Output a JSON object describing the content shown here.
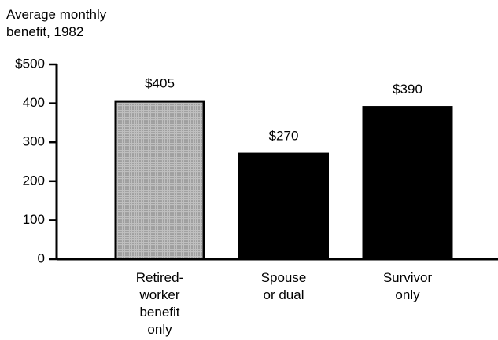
{
  "chart_data": {
    "type": "bar",
    "title": "Average monthly\nbenefit, 1982",
    "categories": [
      "Retired-\nworker\nbenefit\nonly",
      "Spouse\nor dual",
      "Survivor\nonly"
    ],
    "values": [
      405,
      270,
      390
    ],
    "value_labels": [
      "$405",
      "$270",
      "$390"
    ],
    "colors": [
      "#b4b4b4",
      "#000000",
      "#000000"
    ],
    "ylim": [
      0,
      500
    ],
    "yticks": [
      0,
      100,
      200,
      300,
      400,
      {
        "value": 500,
        "label": "$500"
      }
    ],
    "grid": false
  }
}
